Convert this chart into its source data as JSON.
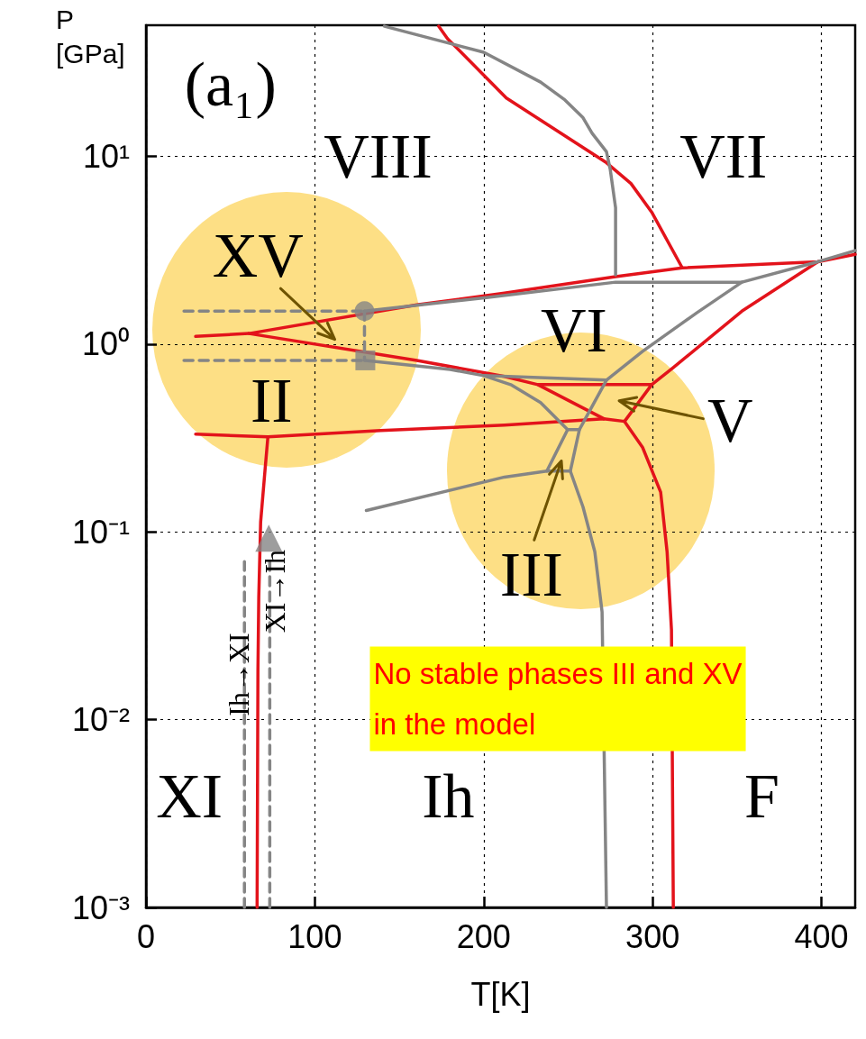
{
  "chart_data": {
    "type": "line",
    "xlabel": "T[K]",
    "ylabel": "P\n[GPa]",
    "xlim": [
      0,
      420
    ],
    "xticks": [
      0,
      100,
      200,
      300,
      400
    ],
    "ylim": [
      0.001,
      50
    ],
    "yticks": [
      {
        "value": 0.001,
        "label": "10⁻³"
      },
      {
        "value": 0.01,
        "label": "10⁻²"
      },
      {
        "value": 0.1,
        "label": "10⁻¹"
      },
      {
        "value": 1,
        "label": "10⁰"
      },
      {
        "value": 10,
        "label": "10¹"
      }
    ],
    "log": "y",
    "grid": true,
    "legend": false,
    "marker": "none",
    "line_style": "solid",
    "series": [
      {
        "color": "#e3131b",
        "x": [
          173.3,
          178.6,
          213.4,
          272.7,
          287.2,
          299.5,
          317.6
        ],
        "values": [
          49.4,
          42.4,
          20.5,
          9.26,
          7.18,
          5.05,
          2.55
        ]
      },
      {
        "color": "#e3131b",
        "x": [
          29.4,
          61.0,
          160.4,
          212.3,
          278.1,
          317.6,
          397.9,
          420
        ],
        "values": [
          1.1,
          1.14,
          1.62,
          1.87,
          2.29,
          2.55,
          2.75,
          3.01
        ]
      },
      {
        "color": "#e3131b",
        "x": [
          61.0,
          160.4,
          212.3,
          232.1,
          271.1
        ],
        "values": [
          1.14,
          0.82,
          0.673,
          0.609,
          0.401
        ]
      },
      {
        "color": "#e3131b",
        "x": [
          232.1,
          299.5,
          283.4
        ],
        "values": [
          0.609,
          0.609,
          0.388
        ]
      },
      {
        "color": "#e3131b",
        "x": [
          29.4,
          72.2,
          139.0,
          212.3,
          271.1,
          283.4
        ],
        "values": [
          0.332,
          0.321,
          0.347,
          0.371,
          0.401,
          0.388
        ]
      },
      {
        "color": "#e3131b",
        "x": [
          283.4,
          294.1,
          304.8,
          308.6,
          311.2,
          312.3
        ],
        "values": [
          0.388,
          0.282,
          0.163,
          0.0785,
          0.0301,
          0.001
        ]
      },
      {
        "color": "#e3131b",
        "x": [
          299.5,
          312.3,
          352.9,
          397.9
        ],
        "values": [
          0.609,
          0.751,
          1.5,
          2.75
        ]
      },
      {
        "color": "#e3131b",
        "x": [
          72.2,
          70.6,
          67.9,
          66.8,
          66.3,
          65.8
        ],
        "values": [
          0.321,
          0.219,
          0.113,
          0.0453,
          0.0185,
          0.001
        ]
      },
      {
        "color": "#858585",
        "x": [
          141.2,
          200.0,
          233.7,
          248.1,
          258.8,
          264.2,
          272.7,
          274.9,
          278.1,
          278.1
        ],
        "values": [
          49.4,
          35.9,
          24.9,
          20.0,
          16.1,
          13.3,
          10.6,
          8.57,
          5.34,
          2.34
        ]
      },
      {
        "color": "#858585",
        "x": [
          129.4,
          201.6,
          278.1,
          352.9,
          397.9,
          420
        ],
        "values": [
          1.5,
          1.77,
          2.14,
          2.14,
          2.75,
          3.15
        ]
      },
      {
        "color": "#858585",
        "x": [
          352.9,
          326.2,
          294.1,
          272.7,
          256.7,
          251.3,
          258.8,
          265.8,
          270.1,
          272.7
        ],
        "values": [
          2.14,
          1.47,
          0.916,
          0.644,
          0.351,
          0.211,
          0.136,
          0.0785,
          0.0375,
          0.001
        ]
      },
      {
        "color": "#858585",
        "x": [
          130.5,
          212.3,
          237.4,
          251.3
        ],
        "values": [
          0.13,
          0.196,
          0.211,
          0.211
        ]
      },
      {
        "color": "#858585",
        "x": [
          129.9,
          180.2,
          200.0,
          216.0,
          233.7,
          249.7
        ],
        "values": [
          0.82,
          0.734,
          0.68,
          0.609,
          0.489,
          0.351
        ]
      },
      {
        "color": "#858585",
        "x": [
          200.0,
          272.7
        ],
        "values": [
          0.68,
          0.644
        ]
      },
      {
        "color": "#858585",
        "x": [
          237.4,
          249.7,
          256.7
        ],
        "values": [
          0.211,
          0.351,
          0.351
        ]
      },
      {
        "color": "#858585",
        "line_style": "dashed",
        "x": [
          22.5,
          129.4
        ],
        "values": [
          1.5,
          1.5
        ]
      },
      {
        "color": "#858585",
        "line_style": "dashed",
        "x": [
          22.5,
          129.9
        ],
        "values": [
          0.82,
          0.82
        ]
      },
      {
        "color": "#858585",
        "line_style": "dashed",
        "x": [
          129.4,
          129.4
        ],
        "values": [
          1.5,
          0.82
        ]
      },
      {
        "type": "scatter",
        "marker": "circle",
        "color": "#858585",
        "x": [
          129.4
        ],
        "values": [
          1.5
        ]
      },
      {
        "type": "scatter",
        "marker": "square",
        "color": "#858585",
        "x": [
          129.9
        ],
        "values": [
          0.82
        ]
      },
      {
        "name": "Ih→XI",
        "color": "#858585",
        "line_style": "dashed",
        "x": [
          58.3,
          58.3,
          58.3
        ],
        "values": [
          0.001,
          0.029,
          0.0695
        ]
      },
      {
        "name": "XI→Ih",
        "color": "#858585",
        "line_style": "dashed",
        "x": [
          73.3,
          73.3,
          73.3
        ],
        "values": [
          0.001,
          0.029,
          0.0695
        ]
      },
      {
        "type": "scatter",
        "marker": "triangle",
        "color": "#858585",
        "x": [
          72.7
        ],
        "values": [
          0.0926
        ]
      }
    ],
    "annotations": [
      "(a₁)",
      "VIII",
      "VII",
      "VI",
      "XV",
      "II",
      "V",
      "III",
      "XI",
      "Ih",
      "F",
      "No stable phases III and XV\nin the model"
    ]
  }
}
